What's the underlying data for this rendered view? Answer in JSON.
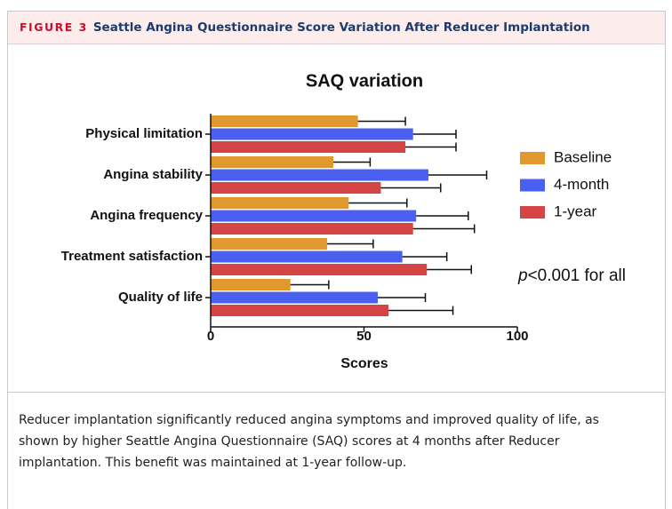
{
  "figure_label": "FIGURE 3",
  "figure_title": "Seattle Angina Questionnaire Score Variation After Reducer Implantation",
  "caption": "Reducer implantation significantly reduced angina symptoms and improved quality of life, as shown by higher Seattle Angina Questionnaire (SAQ) scores at 4 months after Reducer implantation. This benefit was maintained at 1-year follow-up.",
  "chart_data": {
    "type": "hbar",
    "title": "SAQ variation",
    "xlabel": "Scores",
    "categories": [
      "Physical limitation",
      "Angina stability",
      "Angina frequency",
      "Treatment satisfaction",
      "Quality of life"
    ],
    "series": [
      {
        "name": "Baseline",
        "color": "#e1992f",
        "values": [
          48,
          40,
          45,
          38,
          26
        ],
        "errors": [
          15.5,
          12,
          19,
          15,
          12.5
        ]
      },
      {
        "name": "4-month",
        "color": "#4b5ff0",
        "values": [
          66,
          71,
          67,
          62.5,
          54.5
        ],
        "errors": [
          14,
          19,
          17,
          14.5,
          15.5
        ]
      },
      {
        "name": "1-year",
        "color": "#d64545",
        "values": [
          63.5,
          55.5,
          66,
          70.5,
          58
        ],
        "errors": [
          16.5,
          19.5,
          20,
          14.5,
          21
        ]
      }
    ],
    "xlim": [
      0,
      100
    ],
    "xticks": [
      0,
      50,
      100
    ],
    "annotation": [
      "p",
      "<0.001 for all"
    ],
    "legend": "right"
  }
}
